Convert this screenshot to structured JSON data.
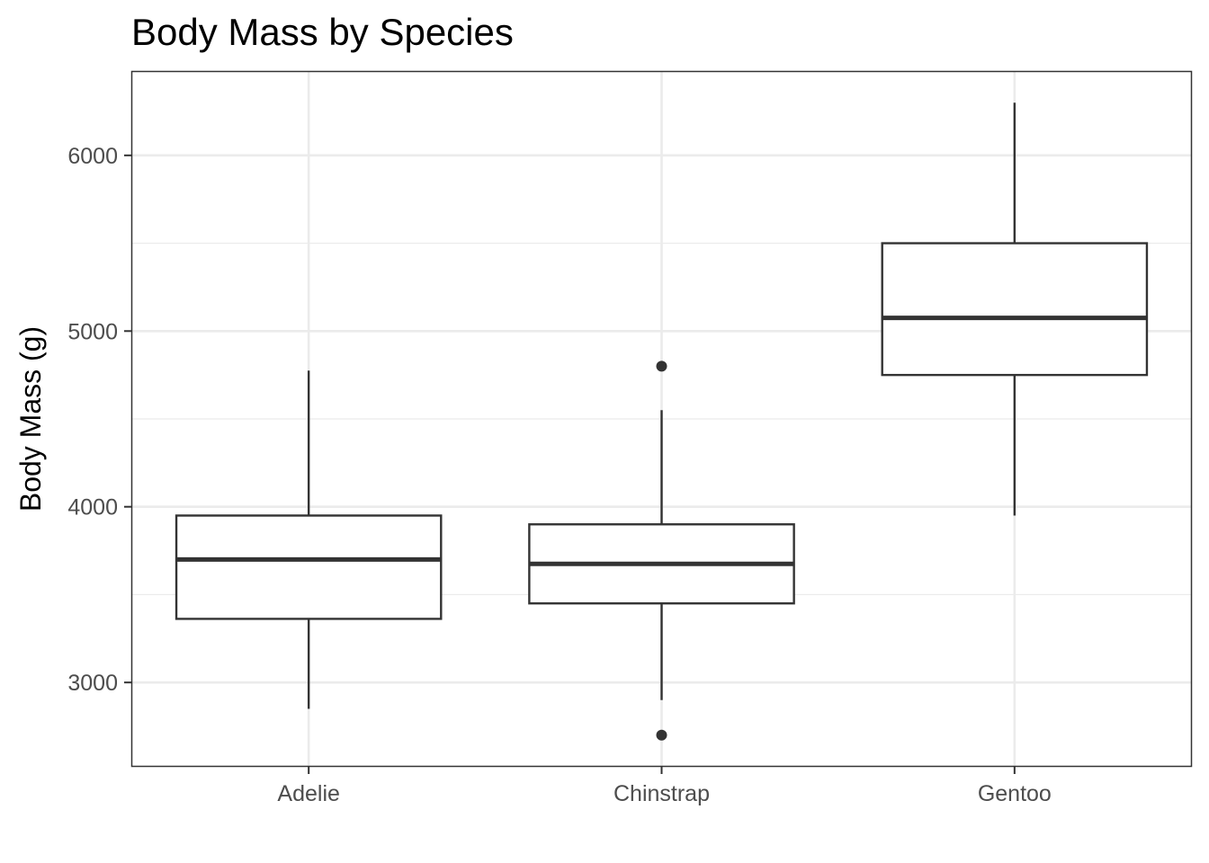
{
  "chart_data": {
    "type": "boxplot",
    "title": "Body Mass by Species",
    "xlabel": "",
    "ylabel": "Body Mass (g)",
    "categories": [
      "Adelie",
      "Chinstrap",
      "Gentoo"
    ],
    "boxes": [
      {
        "category": "Adelie",
        "min": 2850,
        "q1": 3362,
        "median": 3700,
        "q3": 3950,
        "max": 4775,
        "outliers": []
      },
      {
        "category": "Chinstrap",
        "min": 2900,
        "q1": 3450,
        "median": 3675,
        "q3": 3900,
        "max": 4550,
        "outliers": [
          4800,
          2700
        ]
      },
      {
        "category": "Gentoo",
        "min": 3950,
        "q1": 4750,
        "median": 5075,
        "q3": 5500,
        "max": 6300,
        "outliers": []
      }
    ],
    "yticks": [
      3000,
      4000,
      5000,
      6000
    ],
    "ytick_labels": [
      "3000",
      "4000",
      "5000",
      "6000"
    ],
    "ylim": [
      2525,
      6475
    ],
    "grid": true,
    "legend": "none",
    "colors": {
      "box_fill": "#ffffff",
      "box_stroke": "#333333",
      "grid_major": "#ebebeb",
      "grid_minor": "#ebebeb",
      "panel_border": "#333333",
      "outlier": "#333333"
    }
  }
}
